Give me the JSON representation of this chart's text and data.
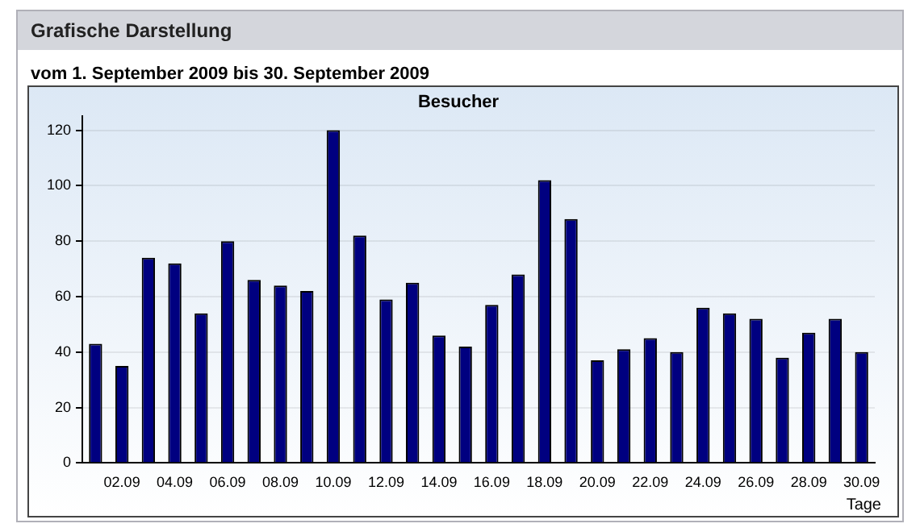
{
  "chart_data": {
    "type": "bar",
    "title": "Besucher",
    "subtitle": "vom 1. September 2009  bis  30. September 2009",
    "xlabel": "Tage",
    "annotations": [
      "Grafische Darstellung"
    ],
    "categories": [
      null,
      "02.09",
      null,
      "04.09",
      null,
      "06.09",
      null,
      "08.09",
      null,
      "10.09",
      null,
      "12.09",
      null,
      "14.09",
      null,
      "16.09",
      null,
      "18.09",
      null,
      "20.09",
      null,
      "22.09",
      null,
      "24.09",
      null,
      "26.09",
      null,
      "28.09",
      null,
      "30.09"
    ],
    "values": [
      43,
      35,
      74,
      72,
      54,
      80,
      66,
      64,
      62,
      120,
      82,
      59,
      65,
      46,
      42,
      57,
      68,
      102,
      88,
      37,
      41,
      45,
      40,
      56,
      54,
      52,
      38,
      47,
      52,
      40
    ],
    "color": "#000080",
    "ylim": [
      0,
      125
    ],
    "yticks": [
      0,
      20,
      40,
      60,
      80,
      100,
      120
    ],
    "grid": "y"
  }
}
